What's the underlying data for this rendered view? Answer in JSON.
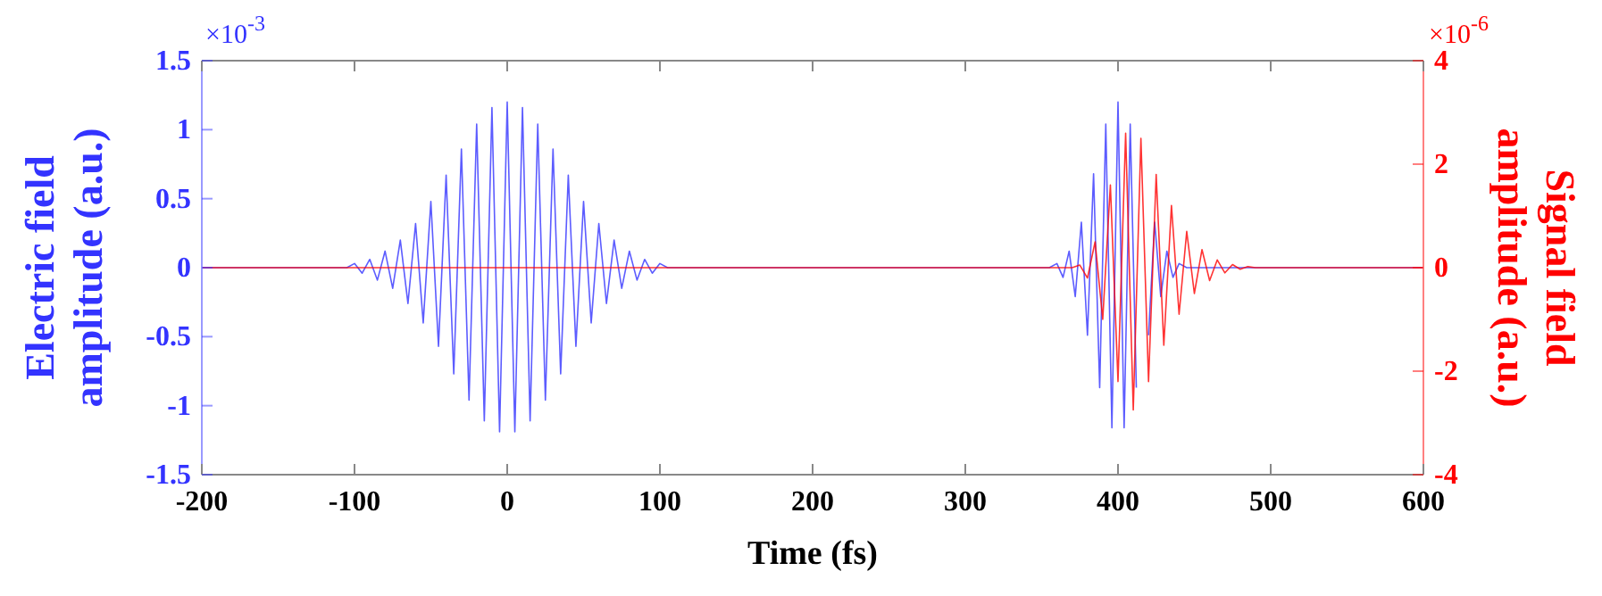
{
  "chart_data": {
    "type": "line",
    "xlabel": "Time (fs)",
    "ylabel": "Electric field amplitude (a.u.)",
    "y2label": "Signal field amplitude (a.u.)",
    "annotations": [
      "×10$^{-3}$",
      "×10$^{-6}$"
    ],
    "xlim": [
      -200,
      600
    ],
    "xticks": [
      -200,
      -100,
      0,
      100,
      200,
      300,
      400,
      500,
      600
    ],
    "ylim": [
      -1.5,
      1.5
    ],
    "yticks": [
      -1.5,
      -1,
      -0.5,
      0,
      0.5,
      1,
      1.5
    ],
    "y2lim": [
      -4,
      4
    ],
    "y2ticks": [
      -4,
      -2,
      0,
      2,
      4
    ],
    "grid": false,
    "marker": "none",
    "line_style": "solid",
    "series": [
      {
        "color": "#3333ff",
        "x": [
          -200,
          -105,
          -100,
          -95,
          -90,
          -85,
          -80,
          -75,
          -70,
          -65,
          -60,
          -55,
          -50,
          -45,
          -40,
          -35,
          -30,
          -25,
          -20,
          -15,
          -10,
          -5,
          0,
          5,
          10,
          15,
          20,
          25,
          30,
          35,
          40,
          45,
          50,
          55,
          60,
          65,
          70,
          75,
          80,
          85,
          90,
          95,
          100,
          105,
          355,
          360,
          364,
          368,
          372,
          376,
          380,
          384,
          388,
          392,
          396,
          400,
          404,
          408,
          412,
          416,
          420,
          424,
          428,
          432,
          436,
          440,
          445,
          600
        ],
        "values": [
          0,
          0,
          0.03,
          -0.04,
          0.06,
          -0.09,
          0.12,
          -0.15,
          0.2,
          -0.26,
          0.32,
          -0.4,
          0.48,
          -0.57,
          0.67,
          -0.77,
          0.86,
          -0.96,
          1.04,
          -1.11,
          1.16,
          -1.19,
          1.2,
          -1.19,
          1.16,
          -1.11,
          1.04,
          -0.96,
          0.86,
          -0.77,
          0.67,
          -0.57,
          0.48,
          -0.4,
          0.32,
          -0.26,
          0.2,
          -0.15,
          0.12,
          -0.09,
          0.06,
          -0.04,
          0.03,
          0,
          0,
          0.03,
          -0.07,
          0.12,
          -0.21,
          0.33,
          -0.49,
          0.68,
          -0.87,
          1.04,
          -1.16,
          1.2,
          -1.16,
          1.04,
          -0.87,
          null,
          -0.49,
          0.33,
          -0.21,
          0.12,
          -0.07,
          0.03,
          0,
          0
        ]
      },
      {
        "color": "#ff0000",
        "axis": "y2",
        "x": [
          -200,
          370,
          375,
          380,
          385,
          390,
          395,
          400,
          405,
          410,
          415,
          420,
          425,
          430,
          435,
          440,
          445,
          450,
          455,
          460,
          465,
          470,
          475,
          480,
          485,
          490,
          600
        ],
        "values": [
          0,
          0,
          0.05,
          -0.2,
          0.5,
          -1.0,
          1.6,
          -2.2,
          2.6,
          -2.75,
          2.5,
          -2.2,
          1.8,
          -1.5,
          1.2,
          -0.9,
          0.7,
          -0.5,
          0.35,
          -0.25,
          0.15,
          -0.1,
          0.06,
          -0.03,
          0.02,
          0,
          0
        ]
      }
    ]
  }
}
